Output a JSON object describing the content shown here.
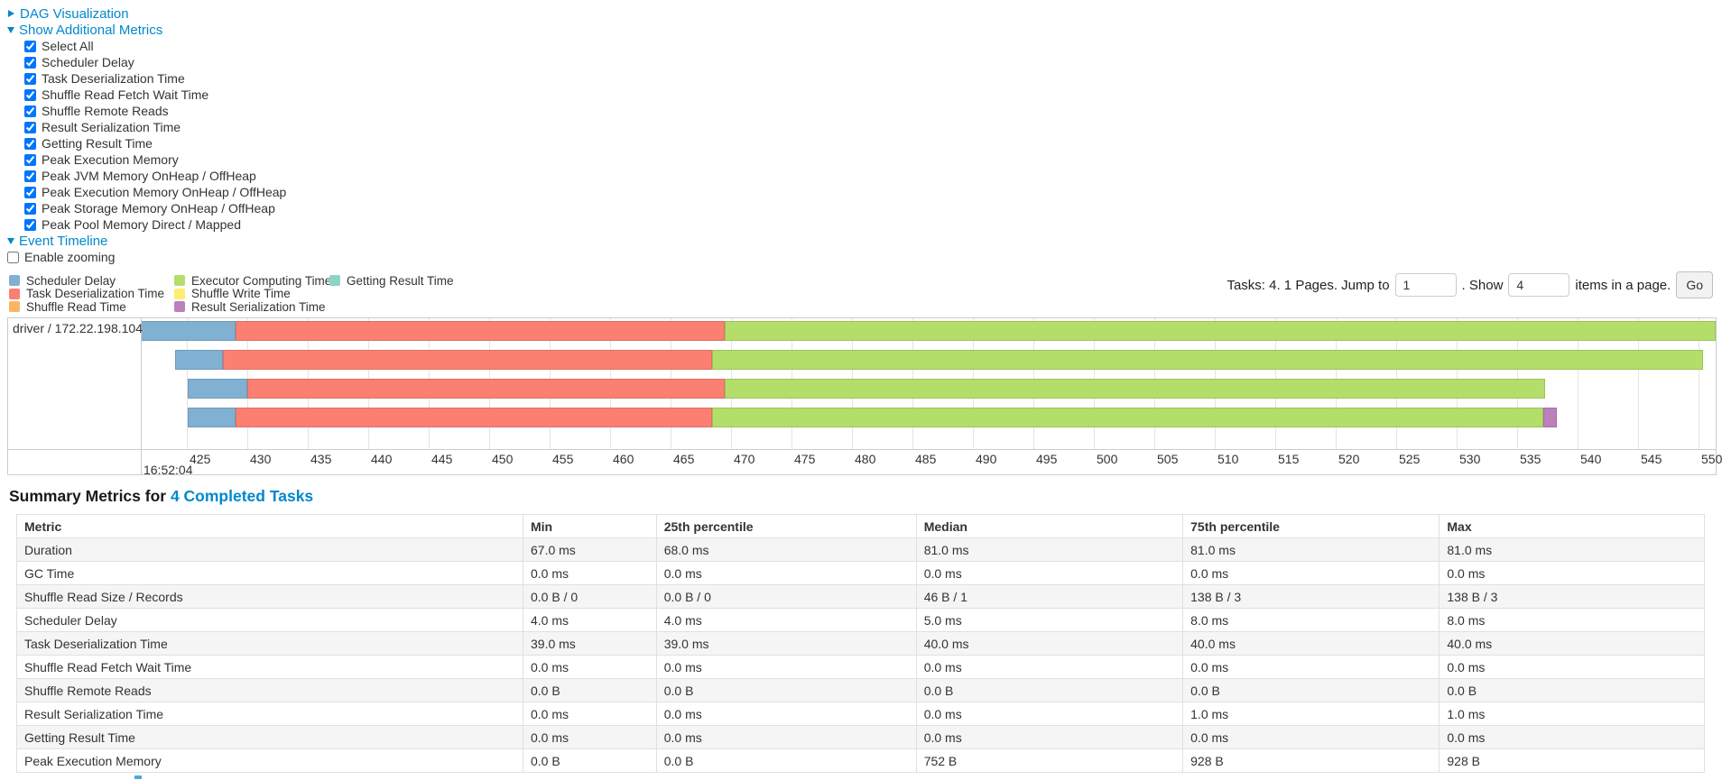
{
  "accent_colors": {
    "link": "#0088cc"
  },
  "controls": {
    "dag": {
      "label": "DAG Visualization",
      "state": "collapsed"
    },
    "metrics": {
      "label": "Show Additional Metrics",
      "state": "expanded"
    },
    "metric_checkboxes": [
      "Select All",
      "Scheduler Delay",
      "Task Deserialization Time",
      "Shuffle Read Fetch Wait Time",
      "Shuffle Remote Reads",
      "Result Serialization Time",
      "Getting Result Time",
      "Peak Execution Memory",
      "Peak JVM Memory OnHeap / OffHeap",
      "Peak Execution Memory OnHeap / OffHeap",
      "Peak Storage Memory OnHeap / OffHeap",
      "Peak Pool Memory Direct / Mapped"
    ],
    "event_timeline": {
      "label": "Event Timeline",
      "state": "expanded"
    },
    "enable_zooming": {
      "label": "Enable zooming",
      "checked": false
    }
  },
  "pagination": {
    "tasks_text": "Tasks: 4. 1 Pages. Jump to",
    "jump_value": "1",
    "show_label": ". Show",
    "show_value": "4",
    "items_label": "items in a page.",
    "go_label": "Go"
  },
  "chart_data": {
    "type": "timeline",
    "row_label": "driver / 172.22.198.104",
    "time_of_first_tick": "16:52:04",
    "x_axis": {
      "tick_min": 425,
      "tick_max": 550,
      "tick_step": 5,
      "visible_min": 421,
      "visible_max": 551.4,
      "units": "ms within 16:52:04"
    },
    "colors": {
      "scheduler_delay": "#80B1D3",
      "task_deserialization": "#FB8072",
      "shuffle_read": "#FDB462",
      "executor_computing": "#B3DE69",
      "shuffle_write": "#FFED6F",
      "result_serialization": "#BC80BD",
      "getting_result": "#8DD3C7"
    },
    "legend_columns": [
      [
        {
          "label": "Scheduler Delay",
          "color_key": "scheduler_delay"
        },
        {
          "label": "Task Deserialization Time",
          "color_key": "task_deserialization"
        },
        {
          "label": "Shuffle Read Time",
          "color_key": "shuffle_read"
        }
      ],
      [
        {
          "label": "Executor Computing Time",
          "color_key": "executor_computing"
        },
        {
          "label": "Shuffle Write Time",
          "color_key": "shuffle_write"
        },
        {
          "label": "Result Serialization Time",
          "color_key": "result_serialization"
        }
      ],
      [
        {
          "label": "Getting Result Time",
          "color_key": "getting_result"
        }
      ]
    ],
    "tasks": [
      {
        "segments": [
          {
            "phase": "scheduler_delay",
            "start": 421.0,
            "end": 429.0
          },
          {
            "phase": "task_deserialization",
            "start": 429.0,
            "end": 469.5
          },
          {
            "phase": "executor_computing",
            "start": 469.5,
            "end": 552.0
          }
        ]
      },
      {
        "segments": [
          {
            "phase": "scheduler_delay",
            "start": 424.0,
            "end": 428.0
          },
          {
            "phase": "task_deserialization",
            "start": 428.0,
            "end": 468.4
          },
          {
            "phase": "executor_computing",
            "start": 468.4,
            "end": 550.4
          }
        ]
      },
      {
        "segments": [
          {
            "phase": "scheduler_delay",
            "start": 425.1,
            "end": 430.0
          },
          {
            "phase": "task_deserialization",
            "start": 430.0,
            "end": 469.5
          },
          {
            "phase": "executor_computing",
            "start": 469.5,
            "end": 537.3
          }
        ]
      },
      {
        "segments": [
          {
            "phase": "scheduler_delay",
            "start": 425.1,
            "end": 429.0
          },
          {
            "phase": "task_deserialization",
            "start": 429.0,
            "end": 468.4
          },
          {
            "phase": "executor_computing",
            "start": 468.4,
            "end": 537.2
          },
          {
            "phase": "result_serialization",
            "start": 537.2,
            "end": 538.3
          }
        ]
      }
    ]
  },
  "summary": {
    "heading_prefix": "Summary Metrics for ",
    "heading_link": "4 Completed Tasks",
    "columns": [
      "Metric",
      "Min",
      "25th percentile",
      "Median",
      "75th percentile",
      "Max"
    ],
    "rows": [
      [
        "Duration",
        "67.0 ms",
        "68.0 ms",
        "81.0 ms",
        "81.0 ms",
        "81.0 ms"
      ],
      [
        "GC Time",
        "0.0 ms",
        "0.0 ms",
        "0.0 ms",
        "0.0 ms",
        "0.0 ms"
      ],
      [
        "Shuffle Read Size / Records",
        "0.0 B / 0",
        "0.0 B / 0",
        "46 B / 1",
        "138 B / 3",
        "138 B / 3"
      ],
      [
        "Scheduler Delay",
        "4.0 ms",
        "4.0 ms",
        "5.0 ms",
        "8.0 ms",
        "8.0 ms"
      ],
      [
        "Task Deserialization Time",
        "39.0 ms",
        "39.0 ms",
        "40.0 ms",
        "40.0 ms",
        "40.0 ms"
      ],
      [
        "Shuffle Read Fetch Wait Time",
        "0.0 ms",
        "0.0 ms",
        "0.0 ms",
        "0.0 ms",
        "0.0 ms"
      ],
      [
        "Shuffle Remote Reads",
        "0.0 B",
        "0.0 B",
        "0.0 B",
        "0.0 B",
        "0.0 B"
      ],
      [
        "Result Serialization Time",
        "0.0 ms",
        "0.0 ms",
        "0.0 ms",
        "1.0 ms",
        "1.0 ms"
      ],
      [
        "Getting Result Time",
        "0.0 ms",
        "0.0 ms",
        "0.0 ms",
        "0.0 ms",
        "0.0 ms"
      ],
      [
        "Peak Execution Memory",
        "0.0 B",
        "0.0 B",
        "752 B",
        "928 B",
        "928 B"
      ]
    ]
  }
}
